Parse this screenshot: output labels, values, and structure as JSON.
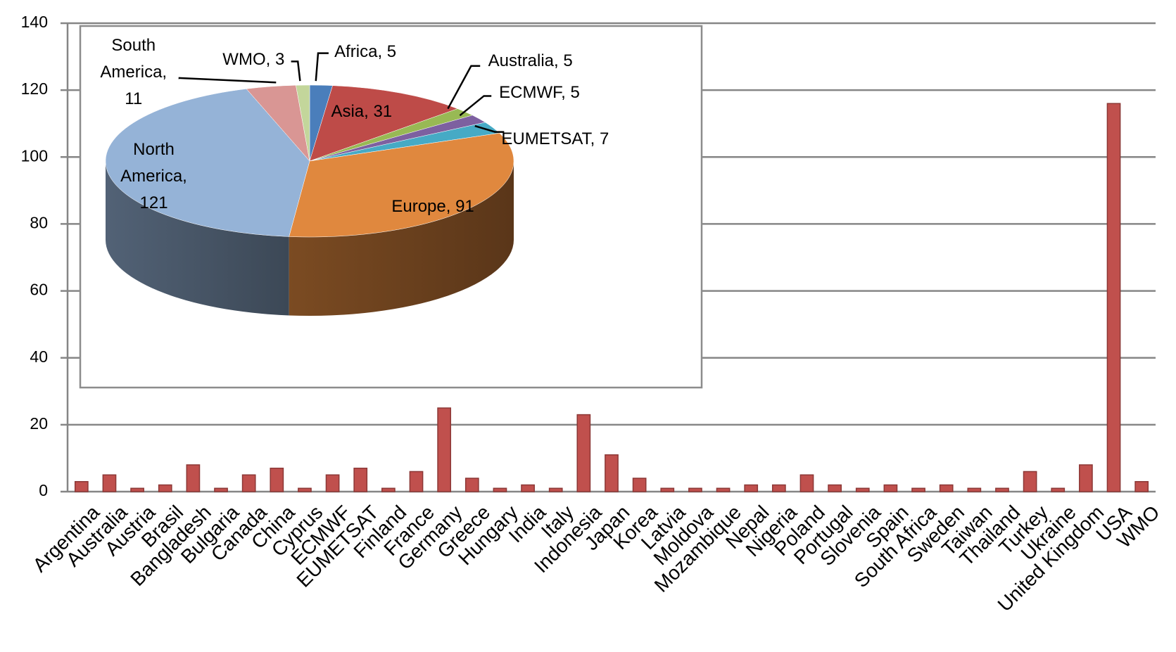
{
  "chart_data": [
    {
      "type": "bar",
      "categories": [
        "Argentina",
        "Australia",
        "Austria",
        "Brasil",
        "Bangladesh",
        "Bulgaria",
        "Canada",
        "China",
        "Cyprus",
        "ECMWF",
        "EUMETSAT",
        "Finland",
        "France",
        "Germany",
        "Greece",
        "Hungary",
        "India",
        "Italy",
        "Indonesia",
        "Japan",
        "Korea",
        "Latvia",
        "Moldova",
        "Mozambique",
        "Nepal",
        "Nigeria",
        "Poland",
        "Portugal",
        "Slovenia",
        "Spain",
        "South Africa",
        "Sweden",
        "Taiwan",
        "Thailand",
        "Turkey",
        "Ukraine",
        "United Kingdom",
        "USA",
        "WMO"
      ],
      "values": [
        3,
        5,
        1,
        2,
        8,
        1,
        5,
        7,
        1,
        5,
        7,
        1,
        6,
        25,
        4,
        1,
        2,
        1,
        23,
        11,
        4,
        1,
        1,
        1,
        2,
        2,
        5,
        2,
        1,
        2,
        1,
        2,
        1,
        1,
        6,
        1,
        8,
        116,
        3
      ],
      "color": "#c0504d",
      "ylim": [
        0,
        140
      ],
      "yticks": [
        0,
        20,
        40,
        60,
        80,
        100,
        120,
        140
      ],
      "grid": true
    },
    {
      "type": "pie",
      "values": [
        5,
        31,
        5,
        5,
        7,
        91,
        121,
        11,
        3
      ],
      "value_labels": [
        "Africa, 5",
        "Asia, 31",
        "Australia, 5",
        "ECMWF, 5",
        "EUMETSAT, 7",
        "Europe, 91",
        "North America, 121",
        "South America, 11",
        "WMO, 3"
      ],
      "colors": [
        "#4a7ebb",
        "#be4b48",
        "#98b954",
        "#7d60a0",
        "#46aac5",
        "#e0883e",
        "#95b3d7",
        "#d99694",
        "#c3d69b"
      ]
    }
  ]
}
